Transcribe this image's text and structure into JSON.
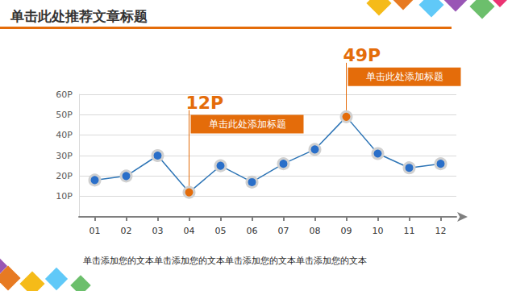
{
  "chart_data": {
    "type": "line",
    "title": "单击此处推荐文章标题",
    "caption": "单击添加您的文本单击添加您的文本单击添加您的文本单击添加您的文本",
    "categories": [
      "01",
      "02",
      "03",
      "04",
      "05",
      "06",
      "07",
      "08",
      "09",
      "10",
      "11",
      "12"
    ],
    "values": [
      18,
      20,
      30,
      12,
      25,
      17,
      26,
      33,
      49,
      31,
      24,
      26
    ],
    "color": "#2e75b6",
    "colors": [
      "#2a6fc9",
      "#2a6fc9",
      "#2a6fc9",
      "#e46c0a",
      "#2a6fc9",
      "#2a6fc9",
      "#2a6fc9",
      "#2a6fc9",
      "#e46c0a",
      "#2a6fc9",
      "#2a6fc9",
      "#2a6fc9"
    ],
    "marker": "circle",
    "ylim": [
      0,
      60
    ],
    "yticks": [
      {
        "value": 10,
        "label": "10P"
      },
      {
        "value": 20,
        "label": "20P"
      },
      {
        "value": 30,
        "label": "30P"
      },
      {
        "value": 40,
        "label": "40P"
      },
      {
        "value": 50,
        "label": "50P"
      },
      {
        "value": 60,
        "label": "60P"
      }
    ],
    "grid": true,
    "data_labels": false,
    "annotations": [
      {
        "category": "04",
        "label": "12P",
        "text": "单击此处添加标题"
      },
      {
        "category": "09",
        "label": "49P",
        "text": "单击此处添加标题"
      }
    ]
  }
}
